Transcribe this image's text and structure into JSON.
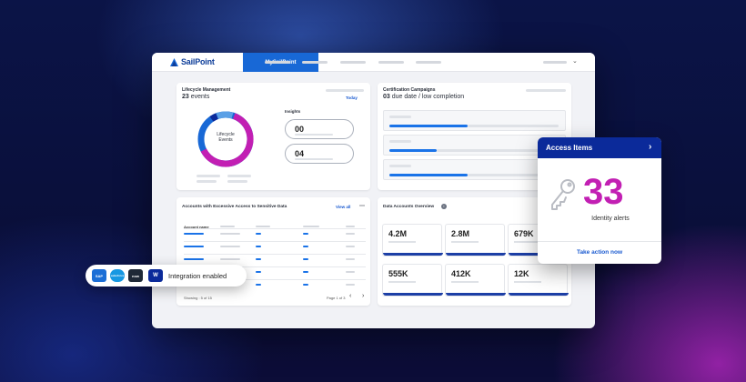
{
  "app": {
    "brand": "SailPoint",
    "nav_active": "MySailPoint"
  },
  "lifecycle": {
    "title": "Lifecycle Management",
    "count": "23",
    "count_suffix": "events",
    "filter": "Today",
    "donut_label_1": "Lifecycle",
    "donut_label_2": "Events",
    "insights_title": "Insights",
    "insight_values": [
      "00",
      "04"
    ],
    "donut_fraction_magenta": 0.62,
    "colors": {
      "magenta": "#c21fb3",
      "blue": "#1868d6",
      "light_blue": "#5aa0e6",
      "navy": "#0b2a9a"
    }
  },
  "certification": {
    "title": "Certification Campaigns",
    "count": "03",
    "count_suffix": "due date / low completion"
  },
  "excessive_access": {
    "title": "Accounts with Excessive Access to Sensitive Data",
    "view_all": "View all",
    "more": "⋯",
    "column_header": "Account name",
    "footer_showing": "Showing : 5 of 15",
    "footer_page": "Page 1 of 3",
    "prev": "‹",
    "next": "›"
  },
  "data_accounts": {
    "title": "Data Accounts Overview",
    "info": "i",
    "stats": [
      "4.2M",
      "2.8M",
      "679K",
      "555K",
      "412K",
      "12K"
    ]
  },
  "access_items": {
    "title": "Access Items",
    "chevron": "›",
    "number": "33",
    "label": "Identity alerts",
    "action": "Take action now"
  },
  "integration": {
    "text": "Integration enabled",
    "logos": [
      "SAP",
      "salesforce",
      "now",
      "W"
    ]
  }
}
